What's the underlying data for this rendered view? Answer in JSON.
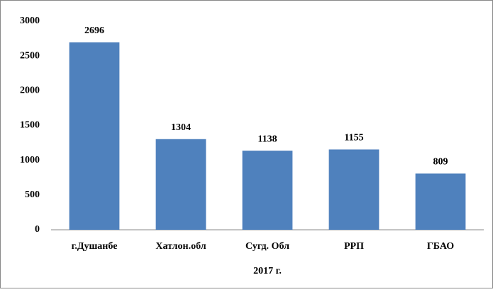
{
  "chart_data": {
    "type": "bar",
    "categories": [
      "г.Душанбе",
      "Хатлон.обл",
      "Сугд. Обл",
      "РРП",
      "ГБАО"
    ],
    "values": [
      2696,
      1304,
      1138,
      1155,
      809
    ],
    "color": "#4f81bd",
    "x_label": "2017 г.",
    "ylim": [
      0,
      3000
    ],
    "yticks": [
      0,
      500,
      1000,
      1500,
      2000,
      2500,
      3000
    ],
    "grid": false
  }
}
